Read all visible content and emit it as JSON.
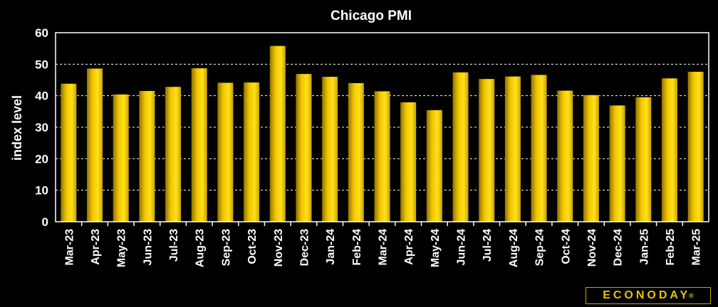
{
  "chart_data": {
    "type": "bar",
    "title": "Chicago PMI",
    "ylabel": "index level",
    "xlabel": "",
    "ylim": [
      0,
      60
    ],
    "yticks": [
      0,
      10,
      20,
      30,
      40,
      50,
      60
    ],
    "grid": true,
    "categories": [
      "Mar-23",
      "Apr-23",
      "May-23",
      "Jun-23",
      "Jul-23",
      "Aug-23",
      "Sep-23",
      "Oct-23",
      "Nov-23",
      "Dec-23",
      "Jan-24",
      "Feb-24",
      "Mar-24",
      "Apr-24",
      "May-24",
      "Jun-24",
      "Jul-24",
      "Aug-24",
      "Sep-24",
      "Oct-24",
      "Nov-24",
      "Dec-24",
      "Jan-25",
      "Feb-25",
      "Mar-25"
    ],
    "values": [
      43.8,
      48.6,
      40.4,
      41.5,
      42.8,
      48.7,
      44.1,
      44.2,
      55.8,
      46.9,
      46.0,
      44.0,
      41.4,
      37.9,
      35.4,
      47.4,
      45.3,
      46.1,
      46.6,
      41.6,
      40.2,
      36.9,
      39.5,
      45.5,
      47.6
    ],
    "bar_color": "#f5c800"
  },
  "brand": {
    "name": "ECONODAY",
    "mark": "®"
  }
}
